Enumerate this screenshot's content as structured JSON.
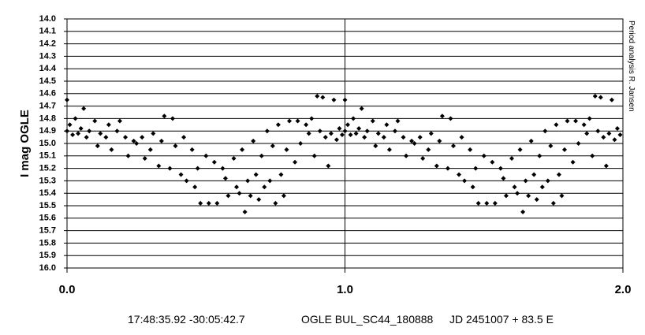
{
  "chart_data": {
    "type": "scatter",
    "y_label": "I mag OGLE",
    "side_note": "Period analysis R. Jansen",
    "footer": [
      "17:48:35.92 -30:05:42.7",
      "OGLE BUL_SC44_180888",
      "JD 2451007 + 83.5 E"
    ],
    "color": "#000000",
    "y_inverted": true,
    "grid": true,
    "xlim": [
      0,
      2
    ],
    "xticks": [
      {
        "value": 0,
        "label": "0.0"
      },
      {
        "value": 1,
        "label": "1.0"
      },
      {
        "value": 2,
        "label": "2.0"
      }
    ],
    "ylim": [
      14,
      16
    ],
    "yticks": [
      {
        "value": 14,
        "label": "14.0"
      },
      14.1,
      14.2,
      14.3,
      14.4,
      14.5,
      14.6,
      14.7,
      14.8,
      14.9,
      {
        "value": 15,
        "label": "15.0"
      },
      15.1,
      15.2,
      15.3,
      15.4,
      15.5,
      15.6,
      15.7,
      15.8,
      15.9,
      {
        "value": 16,
        "label": "16.0"
      }
    ],
    "x": [
      0.0,
      0.0,
      0.01,
      0.02,
      0.03,
      0.04,
      0.05,
      0.06,
      0.07,
      0.08,
      0.1,
      0.11,
      0.12,
      0.14,
      0.15,
      0.16,
      0.18,
      0.19,
      0.21,
      0.22,
      0.24,
      0.25,
      0.27,
      0.28,
      0.3,
      0.31,
      0.33,
      0.34,
      0.35,
      0.37,
      0.38,
      0.39,
      0.41,
      0.42,
      0.43,
      0.45,
      0.46,
      0.47,
      0.48,
      0.5,
      0.51,
      0.53,
      0.54,
      0.56,
      0.57,
      0.58,
      0.6,
      0.61,
      0.62,
      0.63,
      0.64,
      0.65,
      0.66,
      0.67,
      0.68,
      0.69,
      0.7,
      0.71,
      0.72,
      0.73,
      0.74,
      0.75,
      0.76,
      0.77,
      0.78,
      0.79,
      0.8,
      0.82,
      0.83,
      0.84,
      0.86,
      0.87,
      0.88,
      0.89,
      0.9,
      0.91,
      0.92,
      0.93,
      0.94,
      0.95,
      0.96,
      0.97,
      0.98,
      0.99,
      1.0,
      1.0,
      1.01,
      1.02,
      1.03,
      1.04,
      1.05,
      1.06,
      1.07,
      1.08,
      1.1,
      1.11,
      1.12,
      1.14,
      1.15,
      1.16,
      1.18,
      1.19,
      1.21,
      1.22,
      1.24,
      1.25,
      1.27,
      1.28,
      1.3,
      1.31,
      1.33,
      1.34,
      1.35,
      1.37,
      1.38,
      1.39,
      1.41,
      1.42,
      1.43,
      1.45,
      1.46,
      1.47,
      1.48,
      1.5,
      1.51,
      1.53,
      1.54,
      1.56,
      1.57,
      1.58,
      1.6,
      1.61,
      1.62,
      1.63,
      1.64,
      1.65,
      1.66,
      1.67,
      1.68,
      1.69,
      1.7,
      1.71,
      1.72,
      1.73,
      1.74,
      1.75,
      1.76,
      1.77,
      1.78,
      1.79,
      1.8,
      1.82,
      1.83,
      1.84,
      1.86,
      1.87,
      1.88,
      1.89,
      1.9,
      1.91,
      1.92,
      1.93,
      1.94,
      1.95,
      1.96,
      1.97,
      1.98,
      1.99
    ],
    "values": [
      14.9,
      14.65,
      14.85,
      14.93,
      14.8,
      14.92,
      14.88,
      14.72,
      14.95,
      14.9,
      14.82,
      15.02,
      14.92,
      14.95,
      14.85,
      15.05,
      14.9,
      14.82,
      14.95,
      15.1,
      14.98,
      15.0,
      14.95,
      15.12,
      15.05,
      14.92,
      15.18,
      14.98,
      14.78,
      15.2,
      14.8,
      15.02,
      15.25,
      14.95,
      15.3,
      15.05,
      15.35,
      15.2,
      15.48,
      15.1,
      15.48,
      15.15,
      15.48,
      15.2,
      15.28,
      15.42,
      15.12,
      15.35,
      15.4,
      15.05,
      15.55,
      15.3,
      15.42,
      14.98,
      15.25,
      15.45,
      15.1,
      15.35,
      14.9,
      15.3,
      15.02,
      15.48,
      14.85,
      15.25,
      15.42,
      15.05,
      14.82,
      15.15,
      14.82,
      15.0,
      14.85,
      14.92,
      14.8,
      15.1,
      14.62,
      14.9,
      14.63,
      14.95,
      15.18,
      14.92,
      14.65,
      14.97,
      14.88,
      14.93,
      14.9,
      14.65,
      14.85,
      14.93,
      14.8,
      14.92,
      14.88,
      14.72,
      14.95,
      14.9,
      14.82,
      15.02,
      14.92,
      14.95,
      14.85,
      15.05,
      14.9,
      14.82,
      14.95,
      15.1,
      14.98,
      15.0,
      14.95,
      15.12,
      15.05,
      14.92,
      15.18,
      14.98,
      14.78,
      15.2,
      14.8,
      15.02,
      15.25,
      14.95,
      15.3,
      15.05,
      15.35,
      15.2,
      15.48,
      15.1,
      15.48,
      15.15,
      15.48,
      15.2,
      15.28,
      15.42,
      15.12,
      15.35,
      15.4,
      15.05,
      15.55,
      15.3,
      15.42,
      14.98,
      15.25,
      15.45,
      15.1,
      15.35,
      14.9,
      15.3,
      15.02,
      15.48,
      14.85,
      15.25,
      15.42,
      15.05,
      14.82,
      15.15,
      14.82,
      15.0,
      14.85,
      14.92,
      14.8,
      15.1,
      14.62,
      14.9,
      14.63,
      14.95,
      15.18,
      14.92,
      14.65,
      14.97,
      14.88,
      14.93
    ]
  }
}
